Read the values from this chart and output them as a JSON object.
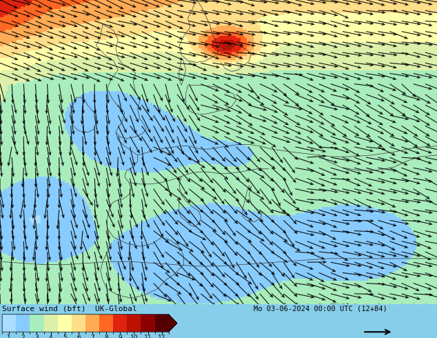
{
  "title_left": "Surface wind (bft)  UK-Global",
  "title_right": "Mo 03-06-2024 00:00 UTC (12+84)",
  "colorbar_colors": [
    "#aaddff",
    "#88ccff",
    "#aaeebb",
    "#ddf0aa",
    "#ffffaa",
    "#ffdd88",
    "#ffaa55",
    "#ff6622",
    "#dd2211",
    "#bb1100",
    "#880000",
    "#550000"
  ],
  "background_color": "#87CEEB",
  "sea_color": "#99ddff",
  "fig_width": 6.34,
  "fig_height": 4.9,
  "dpi": 100
}
